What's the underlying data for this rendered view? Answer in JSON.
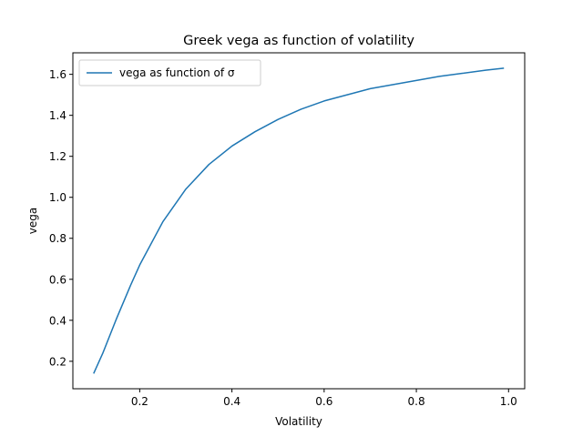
{
  "chart_data": {
    "type": "line",
    "title": "Greek vega as function of volatility",
    "xlabel": "Volatility",
    "ylabel": "vega",
    "xlim": [
      0.055,
      1.035
    ],
    "ylim": [
      0.066,
      1.705
    ],
    "xticks": [
      0.2,
      0.4,
      0.6,
      0.8,
      1.0
    ],
    "xtick_labels": [
      "0.2",
      "0.4",
      "0.6",
      "0.8",
      "1.0"
    ],
    "yticks": [
      0.2,
      0.4,
      0.6,
      0.8,
      1.0,
      1.2,
      1.4,
      1.6
    ],
    "ytick_labels": [
      "0.2",
      "0.4",
      "0.6",
      "0.8",
      "1.0",
      "1.2",
      "1.4",
      "1.6"
    ],
    "grid": false,
    "legend": "upper-left",
    "series": [
      {
        "name": "vega as function of σ",
        "color": "#1f77b4",
        "x": [
          0.1,
          0.12,
          0.15,
          0.18,
          0.2,
          0.25,
          0.3,
          0.35,
          0.4,
          0.45,
          0.5,
          0.55,
          0.6,
          0.65,
          0.7,
          0.75,
          0.8,
          0.85,
          0.9,
          0.95,
          0.99
        ],
        "y": [
          0.14,
          0.24,
          0.41,
          0.57,
          0.67,
          0.88,
          1.04,
          1.16,
          1.25,
          1.32,
          1.38,
          1.43,
          1.47,
          1.5,
          1.53,
          1.55,
          1.57,
          1.59,
          1.605,
          1.62,
          1.63
        ]
      }
    ]
  }
}
